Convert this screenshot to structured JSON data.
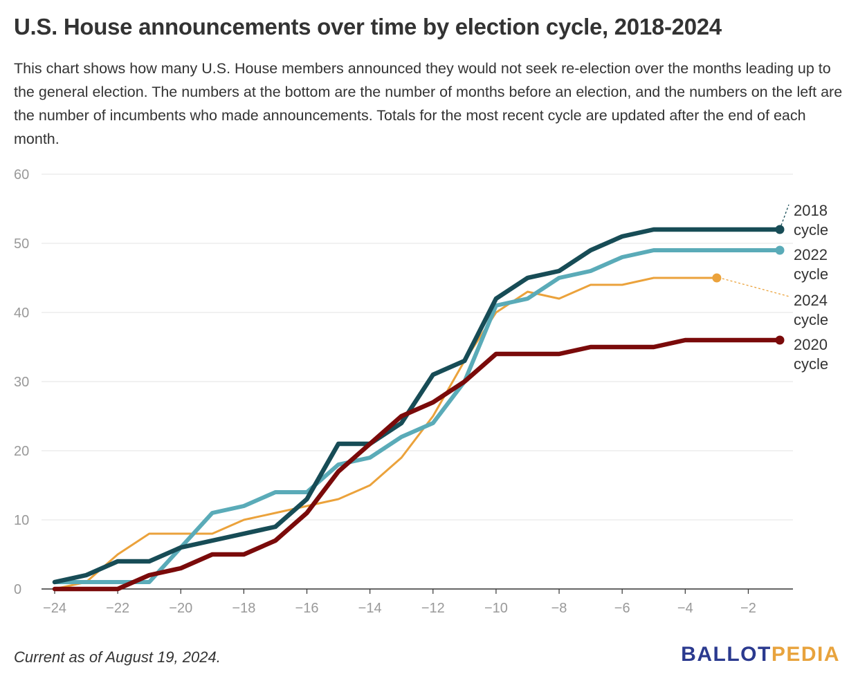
{
  "header": {
    "title": "U.S. House announcements over time by election cycle, 2018-2024",
    "description": "This chart shows how many U.S. House members announced they would not seek re-election over the months leading up to the general election. The numbers at the bottom are the number of months before an election, and the numbers on the left are the number of incumbents who made announcements. Totals for the most recent cycle are updated after the end of each month."
  },
  "footer": {
    "note": "Current as of August 19, 2024.",
    "logo_part1": "BALLOT",
    "logo_part2": "PEDIA"
  },
  "colors": {
    "2018": "#174c56",
    "2022": "#5aabb8",
    "2024": "#eba23b",
    "2020": "#7a0a0a",
    "logo_blue": "#2b3a8f",
    "logo_orange": "#e8a33d"
  },
  "chart_data": {
    "type": "line",
    "title": "U.S. House announcements over time by election cycle, 2018-2024",
    "xlabel": "",
    "ylabel": "",
    "xlim": [
      -24,
      -1
    ],
    "ylim": [
      0,
      60
    ],
    "xticks": [
      -24,
      -22,
      -20,
      -18,
      -16,
      -14,
      -12,
      -10,
      -8,
      -6,
      -4,
      -2
    ],
    "yticks": [
      0,
      10,
      20,
      30,
      40,
      50,
      60
    ],
    "grid": true,
    "legend": "direct labels at right end of lines",
    "draw_order": [
      "2024",
      "2022",
      "2018",
      "2020"
    ],
    "series": [
      {
        "name": "2018 cycle",
        "key": "2018",
        "x": [
          -24,
          -23,
          -22,
          -21,
          -20,
          -19,
          -18,
          -17,
          -16,
          -15,
          -14,
          -13,
          -12,
          -11,
          -10,
          -9,
          -8,
          -7,
          -6,
          -5,
          -4,
          -3,
          -2,
          -1
        ],
        "values": [
          1,
          2,
          4,
          4,
          6,
          7,
          8,
          9,
          13,
          21,
          21,
          24,
          31,
          33,
          42,
          45,
          46,
          49,
          51,
          52,
          52,
          52,
          52,
          52
        ]
      },
      {
        "name": "2022 cycle",
        "key": "2022",
        "x": [
          -24,
          -23,
          -22,
          -21,
          -20,
          -19,
          -18,
          -17,
          -16,
          -15,
          -14,
          -13,
          -12,
          -11,
          -10,
          -9,
          -8,
          -7,
          -6,
          -5,
          -4,
          -3,
          -2,
          -1
        ],
        "values": [
          1,
          1,
          1,
          1,
          6,
          11,
          12,
          14,
          14,
          18,
          19,
          22,
          24,
          30,
          41,
          42,
          45,
          46,
          48,
          49,
          49,
          49,
          49,
          49
        ]
      },
      {
        "name": "2024 cycle",
        "key": "2024",
        "x": [
          -24,
          -23,
          -22,
          -21,
          -20,
          -19,
          -18,
          -17,
          -16,
          -15,
          -14,
          -13,
          -12,
          -11,
          -10,
          -9,
          -8,
          -7,
          -6,
          -5,
          -4,
          -3
        ],
        "values": [
          0,
          1,
          5,
          8,
          8,
          8,
          10,
          11,
          12,
          13,
          15,
          19,
          25,
          33,
          40,
          43,
          42,
          44,
          44,
          45,
          45,
          45
        ]
      },
      {
        "name": "2020 cycle",
        "key": "2020",
        "x": [
          -24,
          -23,
          -22,
          -21,
          -20,
          -19,
          -18,
          -17,
          -16,
          -15,
          -14,
          -13,
          -12,
          -11,
          -10,
          -9,
          -8,
          -7,
          -6,
          -5,
          -4,
          -3,
          -2,
          -1
        ],
        "values": [
          0,
          0,
          0,
          2,
          3,
          5,
          5,
          7,
          11,
          17,
          21,
          25,
          27,
          30,
          34,
          34,
          34,
          35,
          35,
          35,
          36,
          36,
          36,
          36
        ]
      }
    ],
    "end_labels": [
      {
        "key": "2018",
        "line1": "2018",
        "line2": "cycle"
      },
      {
        "key": "2022",
        "line1": "2022",
        "line2": "cycle"
      },
      {
        "key": "2024",
        "line1": "2024",
        "line2": "cycle"
      },
      {
        "key": "2020",
        "line1": "2020",
        "line2": "cycle"
      }
    ]
  }
}
